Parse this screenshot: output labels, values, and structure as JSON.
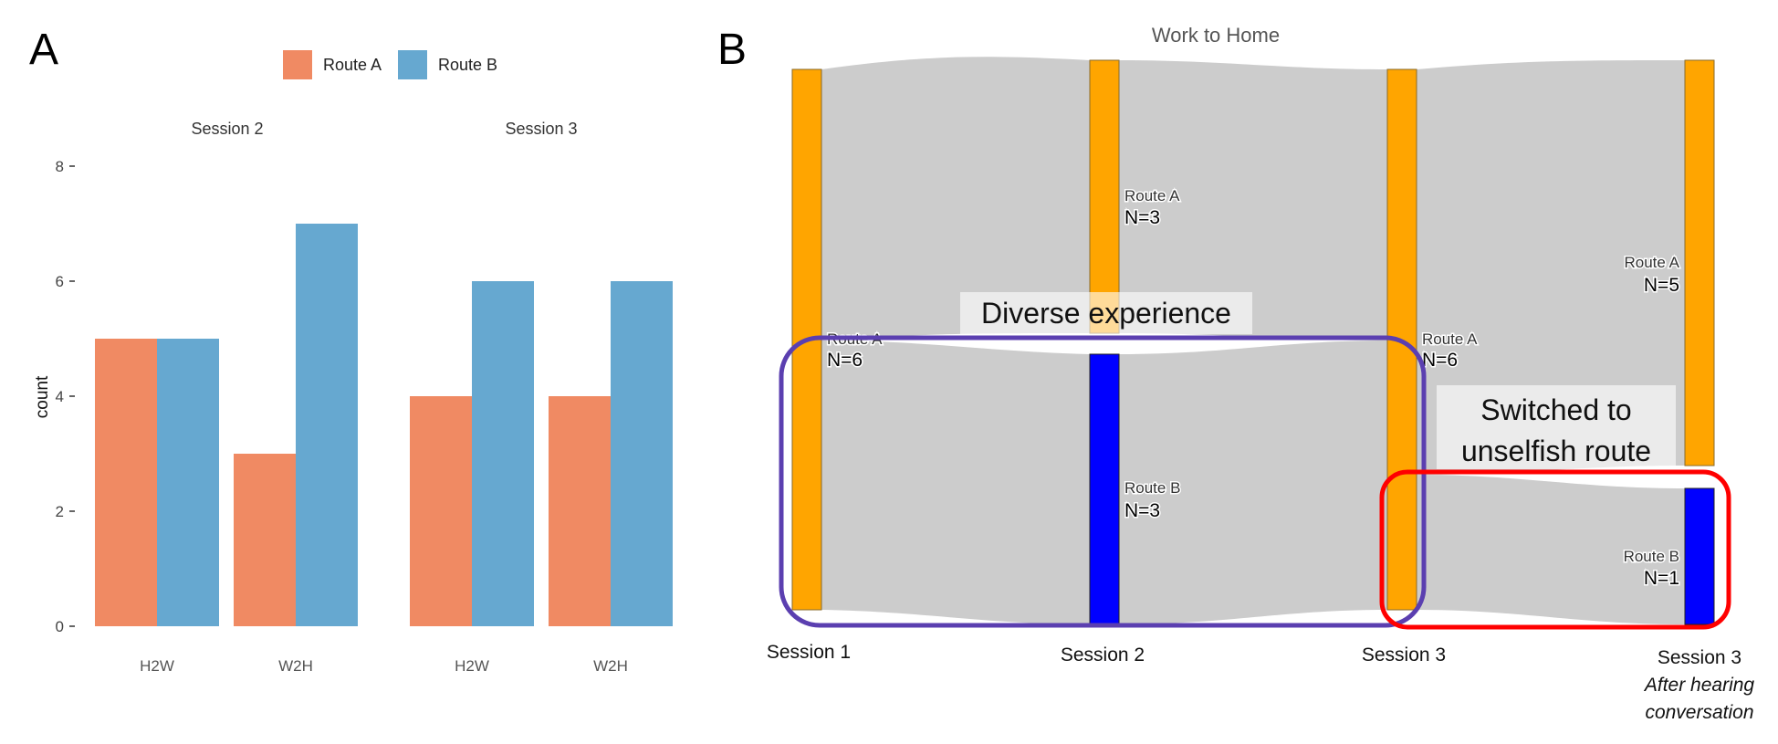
{
  "panel_a": {
    "letter": "A",
    "legend": [
      {
        "label": "Route A",
        "color": "#F08A63"
      },
      {
        "label": "Route B",
        "color": "#66A8D0"
      }
    ]
  },
  "panel_b": {
    "letter": "B",
    "title": "Work to Home",
    "session_labels": [
      "Session 1",
      "Session 2",
      "Session 3",
      "Session 3"
    ],
    "session_note": [
      "After hearing",
      "conversation"
    ],
    "annotations": {
      "diverse": "Diverse experience",
      "switched": [
        "Switched to",
        "unselfish route"
      ]
    }
  },
  "chart_data": [
    {
      "type": "bar",
      "title": "",
      "xlabel": "",
      "ylabel": "count",
      "ylim": [
        0,
        8
      ],
      "yticks": [
        0,
        2,
        4,
        6,
        8
      ],
      "grid": false,
      "legend_position": "top",
      "facets": [
        {
          "label": "Session 2",
          "categories": [
            "H2W",
            "W2H"
          ],
          "series": [
            {
              "name": "Route A",
              "values": [
                5,
                3
              ]
            },
            {
              "name": "Route B",
              "values": [
                5,
                7
              ]
            }
          ]
        },
        {
          "label": "Session 3",
          "categories": [
            "H2W",
            "W2H"
          ],
          "series": [
            {
              "name": "Route A",
              "values": [
                4,
                4
              ]
            },
            {
              "name": "Route B",
              "values": [
                6,
                6
              ]
            }
          ]
        }
      ]
    },
    {
      "type": "sankey",
      "title": "Work to Home",
      "stages": [
        "Session 1",
        "Session 2",
        "Session 3",
        "Session 3"
      ],
      "nodes": [
        {
          "stage": 0,
          "route": "Route A",
          "label": "Route A",
          "n_label": "N=6",
          "n": 6,
          "color": "#FFA500"
        },
        {
          "stage": 1,
          "route": "Route A",
          "label": "Route A",
          "n_label": "N=3",
          "n": 3,
          "color": "#FFA500"
        },
        {
          "stage": 1,
          "route": "Route B",
          "label": "Route B",
          "n_label": "N=3",
          "n": 3,
          "color": "#0000FF"
        },
        {
          "stage": 2,
          "route": "Route A",
          "label": "Route A",
          "n_label": "N=6",
          "n": 6,
          "color": "#FFA500"
        },
        {
          "stage": 3,
          "route": "Route A",
          "label": "Route A",
          "n_label": "N=5",
          "n": 5,
          "color": "#FFA500"
        },
        {
          "stage": 3,
          "route": "Route B",
          "label": "Route B",
          "n_label": "N=1",
          "n": 1,
          "color": "#0000FF"
        }
      ],
      "links": [
        {
          "source": 0,
          "target": 1,
          "value": 3
        },
        {
          "source": 0,
          "target": 2,
          "value": 3
        },
        {
          "source": 1,
          "target": 3,
          "value": 3
        },
        {
          "source": 2,
          "target": 3,
          "value": 3
        },
        {
          "source": 3,
          "target": 4,
          "value": 5
        },
        {
          "source": 3,
          "target": 5,
          "value": 1
        }
      ],
      "highlight_colors": {
        "diverse": "#5B3FB0",
        "switched": "#FF0000"
      }
    }
  ]
}
